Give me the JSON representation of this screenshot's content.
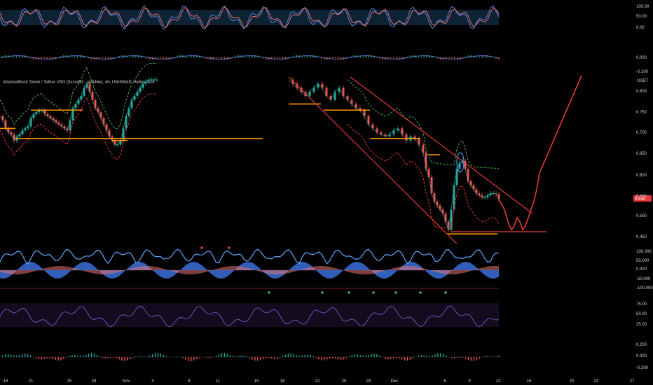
{
  "chart_data": {
    "type": "line",
    "title": "AllianceBlock Token / Tether USD (0x1cd92...a2946e), 4h, UNISWAP, Heikin Ashi",
    "currency": "USDT",
    "last_price": "0.544",
    "colors": {
      "background": "#000000",
      "up": "#26a69a",
      "down": "#ef5350",
      "level": "#ff9800",
      "projection": "#e53935",
      "channel": "#e53935",
      "ellipse": "#4f8fe8",
      "band_upper": "#4caf50",
      "band_lower": "#e53935",
      "rsi": "#7e57c2",
      "stoch_k": "#5b7fd8",
      "stoch_d": "#e57373"
    },
    "x_axis_labels": [
      "18",
      "21",
      "25",
      "28",
      "Nov",
      "4",
      "8",
      "11",
      "15",
      "18",
      "22",
      "25",
      "28",
      "Dec",
      "6",
      "9",
      "13",
      "16",
      "20",
      "23",
      "27"
    ],
    "panes": {
      "stoch": {
        "ticks": [
          "100.00",
          "50.00",
          "0.00"
        ]
      },
      "macd_top": {
        "ticks": [
          "0.000",
          "-0.100"
        ]
      },
      "price": {
        "ticks": [
          "0.800",
          "0.750",
          "0.700",
          "0.650",
          "0.600",
          "0.550",
          "0.500",
          "0.450"
        ],
        "ylim": [
          0.44,
          0.85
        ]
      },
      "osc": {
        "ticks": [
          "100.000",
          "50.000",
          "0.000",
          "-50.000",
          "-100.000"
        ]
      },
      "rsi": {
        "ticks": [
          "75.00",
          "50.00",
          "25.00"
        ]
      },
      "macd": {
        "ticks": [
          "0.200",
          "0.000",
          "-0.200"
        ]
      }
    },
    "price_series": {
      "x": [
        0,
        4,
        8,
        12,
        16,
        20,
        24,
        28,
        32,
        36,
        40,
        44,
        48,
        52,
        56,
        60,
        64,
        68,
        72,
        76,
        80,
        84,
        88,
        92,
        96,
        100,
        104,
        108,
        112,
        116,
        120,
        124,
        128,
        132,
        136,
        140,
        144,
        148,
        152,
        156,
        160,
        164,
        168,
        172,
        176,
        180,
        184,
        188,
        192,
        196,
        200,
        204,
        208,
        212,
        216,
        220,
        224
      ],
      "y": [
        0.75,
        0.74,
        0.72,
        0.71,
        0.705,
        0.69,
        0.7,
        0.705,
        0.715,
        0.72,
        0.725,
        0.745,
        0.755,
        0.76,
        0.765,
        0.765,
        0.755,
        0.75,
        0.745,
        0.74,
        0.735,
        0.73,
        0.725,
        0.72,
        0.715,
        0.74,
        0.77,
        0.78,
        0.79,
        0.8,
        0.82,
        0.83,
        0.81,
        0.79,
        0.77,
        0.76,
        0.745,
        0.73,
        0.715,
        0.7,
        0.69,
        0.68,
        0.68,
        0.69,
        0.72,
        0.75,
        0.77,
        0.79,
        0.8,
        0.81,
        0.82,
        0.83,
        0.835,
        0.84,
        0.84,
        0.84,
        0.84
      ]
    },
    "price_series_2": {
      "x": [
        412,
        418,
        424,
        430,
        436,
        442,
        448,
        454,
        460,
        466,
        472,
        478,
        484,
        490,
        496,
        502,
        508,
        514,
        520,
        526,
        532,
        538,
        544,
        550,
        556,
        562,
        568,
        574,
        580,
        586,
        592,
        598,
        604,
        608,
        612,
        616,
        620,
        624,
        628,
        632,
        636,
        640,
        644,
        648,
        652,
        656,
        660,
        664,
        668,
        672,
        676,
        680,
        684,
        688,
        692,
        696,
        700,
        704,
        708,
        712
      ],
      "y": [
        0.84,
        0.83,
        0.82,
        0.81,
        0.8,
        0.81,
        0.82,
        0.83,
        0.82,
        0.8,
        0.79,
        0.81,
        0.82,
        0.8,
        0.79,
        0.78,
        0.77,
        0.765,
        0.75,
        0.73,
        0.72,
        0.71,
        0.705,
        0.7,
        0.705,
        0.715,
        0.72,
        0.705,
        0.69,
        0.7,
        0.695,
        0.68,
        0.66,
        0.62,
        0.6,
        0.56,
        0.54,
        0.53,
        0.52,
        0.51,
        0.49,
        0.47,
        0.52,
        0.58,
        0.62,
        0.635,
        0.64,
        0.62,
        0.59,
        0.58,
        0.57,
        0.56,
        0.555,
        0.55,
        0.55,
        0.555,
        0.56,
        0.56,
        0.558,
        0.545
      ]
    },
    "projection": {
      "x": [
        712,
        720,
        726,
        730,
        734,
        738,
        742,
        746,
        750,
        754,
        758,
        762,
        766,
        770,
        800,
        830
      ],
      "y": [
        0.545,
        0.52,
        0.485,
        0.47,
        0.48,
        0.5,
        0.49,
        0.47,
        0.48,
        0.5,
        0.52,
        0.54,
        0.57,
        0.61,
        0.73,
        0.85
      ]
    }
  }
}
